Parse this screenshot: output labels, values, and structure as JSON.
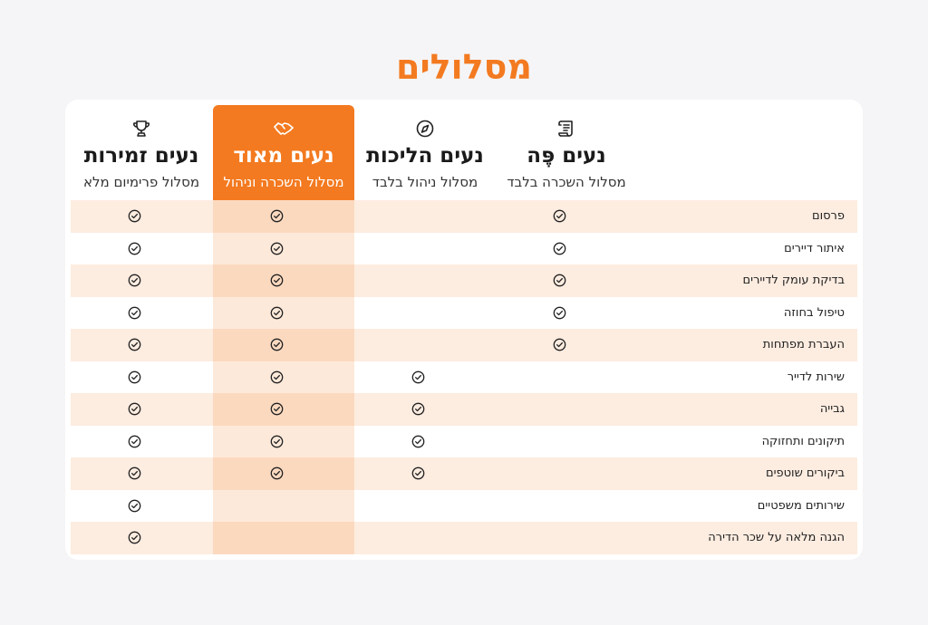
{
  "page_title": "מסלולים",
  "plans": [
    {
      "id": "zmirot",
      "name": "נעים זמירות",
      "subtitle": "מסלול פרימיום מלא",
      "icon": "trophy-icon"
    },
    {
      "id": "meod",
      "name": "נעים מאוד",
      "subtitle": "מסלול השכרה וניהול",
      "icon": "handshake-icon",
      "featured": true
    },
    {
      "id": "halichot",
      "name": "נעים הליכות",
      "subtitle": "מסלול ניהול בלבד",
      "icon": "compass-icon"
    },
    {
      "id": "pe",
      "name": "נעים פֶּה",
      "subtitle": "מסלול השכרה בלבד",
      "icon": "scroll-icon"
    }
  ],
  "features": [
    {
      "label": "פרסום",
      "includes": [
        true,
        true,
        false,
        true
      ]
    },
    {
      "label": "איתור דיירים",
      "includes": [
        true,
        true,
        false,
        true
      ]
    },
    {
      "label": "בדיקת עומק לדיירים",
      "includes": [
        true,
        true,
        false,
        true
      ]
    },
    {
      "label": "טיפול בחוזה",
      "includes": [
        true,
        true,
        false,
        true
      ]
    },
    {
      "label": "העברת מפתחות",
      "includes": [
        true,
        true,
        false,
        true
      ]
    },
    {
      "label": "שירות לדייר",
      "includes": [
        true,
        true,
        true,
        false
      ]
    },
    {
      "label": "גבייה",
      "includes": [
        true,
        true,
        true,
        false
      ]
    },
    {
      "label": "תיקונים ותחזוקה",
      "includes": [
        true,
        true,
        true,
        false
      ]
    },
    {
      "label": "ביקורים שוטפים",
      "includes": [
        true,
        true,
        true,
        false
      ]
    },
    {
      "label": "שירותים משפטיים",
      "includes": [
        true,
        false,
        false,
        false
      ]
    },
    {
      "label": "הגנה מלאה על שכר הדירה",
      "includes": [
        true,
        false,
        false,
        false
      ]
    }
  ],
  "colors": {
    "accent": "#f37a20",
    "row_shade": "#fdece0",
    "featured_shade": "#fde9d9"
  }
}
